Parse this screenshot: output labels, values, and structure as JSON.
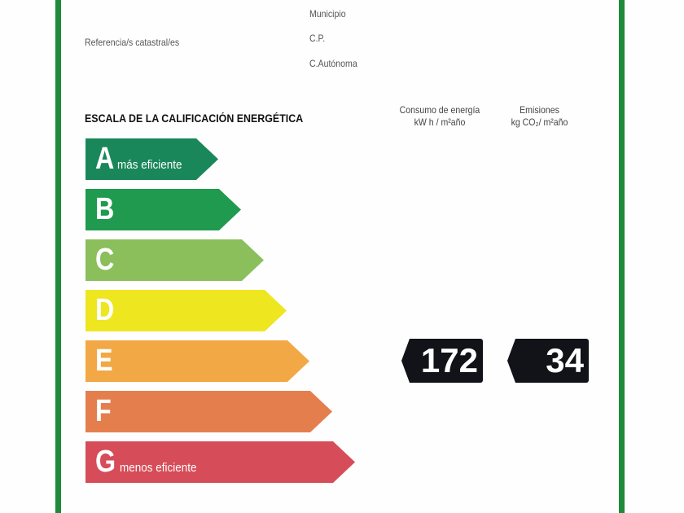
{
  "header": {
    "referencia_label": "Referencia/s catastral/es",
    "municipio_label": "Municipio",
    "cp_label": "C.P.",
    "autonoma_label": "C.Autónoma"
  },
  "scale": {
    "title": "ESCALA DE LA CALIFICACIÓN ENERGÉTICA",
    "ratings": [
      {
        "letter": "A",
        "note": "más eficiente",
        "color": "#19875a"
      },
      {
        "letter": "B",
        "note": "",
        "color": "#1f9a4e"
      },
      {
        "letter": "C",
        "note": "",
        "color": "#8abf5c"
      },
      {
        "letter": "D",
        "note": "",
        "color": "#eee61f"
      },
      {
        "letter": "E",
        "note": "",
        "color": "#f2a845"
      },
      {
        "letter": "F",
        "note": "",
        "color": "#e47f4d"
      },
      {
        "letter": "G",
        "note": "menos eficiente",
        "color": "#d64c58"
      }
    ]
  },
  "consumo": {
    "title": "Consumo de energía",
    "unit": "kW h / m²año",
    "value": "172",
    "rating": "E"
  },
  "emisiones": {
    "title": "Emisiones",
    "unit": "kg CO₂/ m²año",
    "value": "34",
    "rating": "E"
  },
  "colors": {
    "border": "#1e8a3a",
    "tag": "#121318"
  }
}
